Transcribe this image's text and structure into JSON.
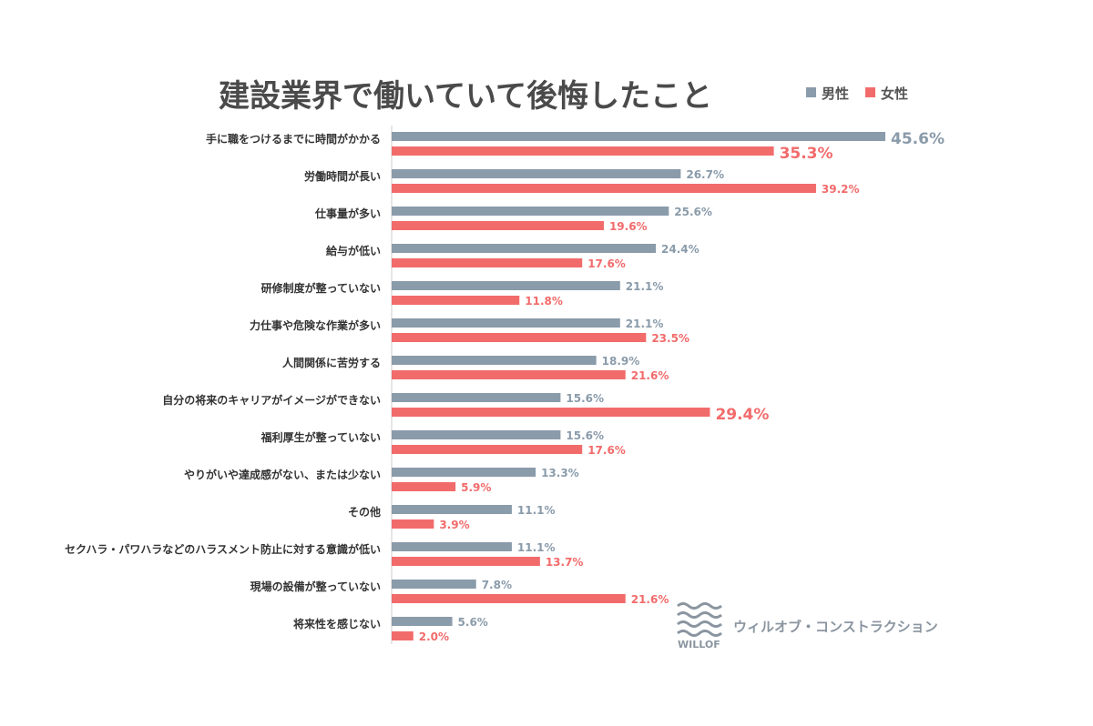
{
  "chart_data": {
    "type": "bar",
    "orientation": "horizontal",
    "title": "建設業界で働いていて後悔したこと",
    "legend": {
      "placement": "top-right"
    },
    "grid": false,
    "xlim": [
      0,
      46
    ],
    "categories": [
      "手に職をつけるまでに時間がかかる",
      "労働時間が長い",
      "仕事量が多い",
      "給与が低い",
      "研修制度が整っていない",
      "力仕事や危険な作業が多い",
      "人間関係に苦労する",
      "自分の将来のキャリアがイメージができない",
      "福利厚生が整っていない",
      "やりがいや達成感がない、または少ない",
      "その他",
      "セクハラ・パワハラなどのハラスメント防止に対する意識が低い",
      "現場の設備が整っていない",
      "将来性を感じない"
    ],
    "series": [
      {
        "name": "男性",
        "color": "#8a9baa",
        "values": [
          45.6,
          26.7,
          25.6,
          24.4,
          21.1,
          21.1,
          18.9,
          15.6,
          15.6,
          13.3,
          11.1,
          11.1,
          7.8,
          5.6
        ],
        "labels": [
          "45.6%",
          "26.7%",
          "25.6%",
          "24.4%",
          "21.1%",
          "21.1%",
          "18.9%",
          "15.6%",
          "15.6%",
          "13.3%",
          "11.1%",
          "11.1%",
          "7.8%",
          "5.6%"
        ],
        "highlight": [
          true,
          false,
          false,
          false,
          false,
          false,
          false,
          false,
          false,
          false,
          false,
          false,
          false,
          false
        ]
      },
      {
        "name": "女性",
        "color": "#f26b6b",
        "values": [
          35.3,
          39.2,
          19.6,
          17.6,
          11.8,
          23.5,
          21.6,
          29.4,
          17.6,
          5.9,
          3.9,
          13.7,
          21.6,
          2.0
        ],
        "labels": [
          "35.3%",
          "39.2%",
          "19.6%",
          "17.6%",
          "11.8%",
          "23.5%",
          "21.6%",
          "29.4%",
          "17.6%",
          "5.9%",
          "3.9%",
          "13.7%",
          "21.6%",
          "2.0%"
        ],
        "highlight": [
          true,
          false,
          false,
          false,
          false,
          false,
          false,
          true,
          false,
          false,
          false,
          false,
          false,
          false
        ]
      }
    ]
  },
  "brand": {
    "name": "ウィルオブ・コンストラクション",
    "logo_text": "WILLOF",
    "color": "#8a95a0"
  }
}
